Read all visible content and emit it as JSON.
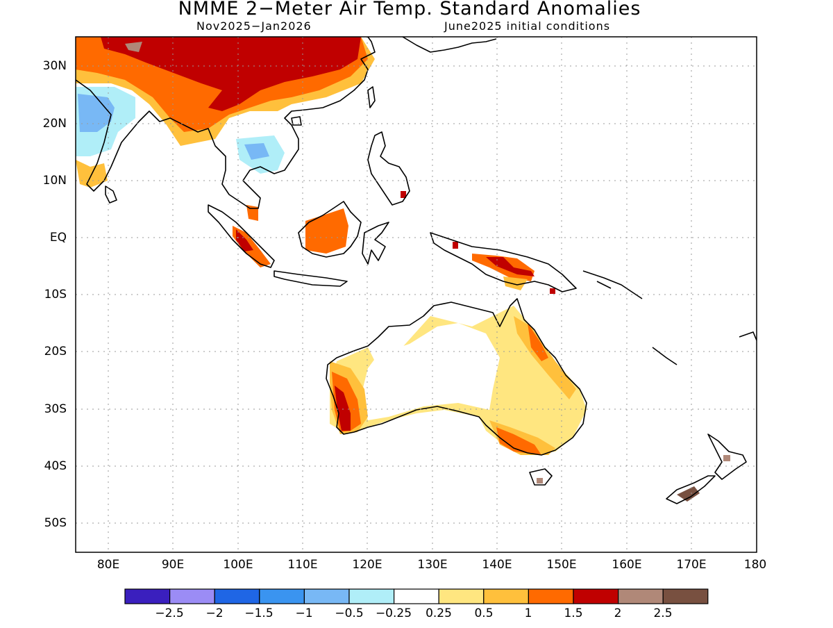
{
  "title": "NMME 2−Meter Air Temp. Standard Anomalies",
  "subtitle_left": "Nov2025−Jan2026",
  "subtitle_right": "June2025 initial conditions",
  "map": {
    "lon_range": [
      75,
      180
    ],
    "lat_range": [
      -55,
      35
    ],
    "lat_labels": [
      "30N",
      "20N",
      "10N",
      "EQ",
      "10S",
      "20S",
      "30S",
      "40S",
      "50S"
    ],
    "lon_labels": [
      "80E",
      "90E",
      "100E",
      "110E",
      "120E",
      "130E",
      "140E",
      "150E",
      "160E",
      "170E",
      "180"
    ],
    "grid": "dotted"
  },
  "colorbar": {
    "colors": [
      "#3a1fbe",
      "#9b8cf5",
      "#1f66e5",
      "#3a94f0",
      "#78b8f5",
      "#b0eef8",
      "#ffffff",
      "#ffe680",
      "#ffc03c",
      "#ff6a00",
      "#c00000",
      "#b08878",
      "#785040"
    ],
    "labels": [
      "−2.5",
      "−2",
      "−1.5",
      "−1",
      "−0.5",
      "−0.25",
      "0.25",
      "0.5",
      "1",
      "1.5",
      "2",
      "2.5"
    ]
  }
}
